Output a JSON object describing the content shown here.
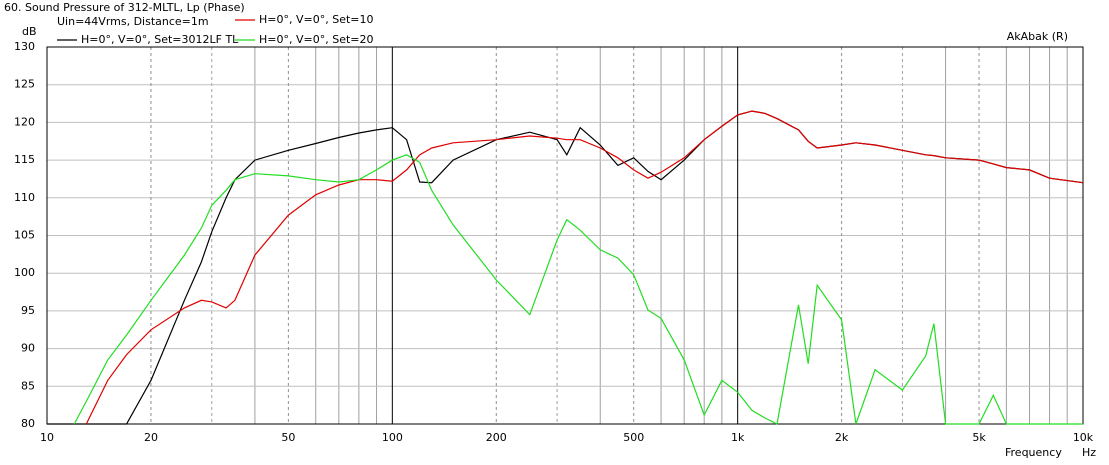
{
  "chart_data": {
    "type": "line",
    "title": "60. Sound Pressure of 312-MLTL, Lp (Phase)",
    "subtitle": "Uin=44Vrms, Distance=1m",
    "watermark": "AkAbak (R)",
    "ylabel": "dB",
    "xlabel": "Frequency",
    "xunit": "Hz",
    "xscale": "log",
    "grid": true,
    "xlim": [
      10,
      10000
    ],
    "ylim": [
      80,
      130
    ],
    "xticks": [
      10,
      20,
      50,
      100,
      200,
      500,
      {
        "value": 1000,
        "label": "1k"
      },
      {
        "value": 2000,
        "label": "2k"
      },
      {
        "value": 5000,
        "label": "5k"
      },
      {
        "value": 10000,
        "label": "10k"
      }
    ],
    "yticks": [
      80,
      85,
      90,
      95,
      100,
      105,
      110,
      115,
      120,
      125,
      130
    ],
    "x": [
      10,
      12,
      13,
      15,
      17,
      20,
      25,
      28,
      30,
      33,
      35,
      40,
      50,
      60,
      70,
      80,
      90,
      100,
      110,
      120,
      130,
      150,
      200,
      250,
      300,
      320,
      350,
      400,
      450,
      500,
      550,
      600,
      700,
      800,
      900,
      1000,
      1100,
      1200,
      1300,
      1500,
      1600,
      1700,
      2000,
      2200,
      2500,
      3000,
      3500,
      3700,
      4000,
      5000,
      5500,
      6000,
      7000,
      8000,
      10000
    ],
    "series": [
      {
        "name": "H=0°, V=0°, Set=3012LF TL",
        "color": "#000000",
        "values": [
          80,
          80,
          80,
          80,
          80,
          85.8,
          96.4,
          101.5,
          105.5,
          110,
          112.4,
          115,
          116.3,
          117.2,
          118,
          118.6,
          119,
          119.3,
          117.7,
          112.1,
          112,
          115,
          117.7,
          118.7,
          117.7,
          115.7,
          119.3,
          117,
          114.3,
          115.3,
          113.5,
          112.4,
          115,
          117.7,
          119.5,
          121,
          121.5,
          121.2,
          120.5,
          119,
          117.5,
          116.6,
          117,
          117.3,
          117,
          116.3,
          115.7,
          115.6,
          115.3,
          115,
          114.5,
          114,
          113.7,
          112.6,
          112
        ]
      },
      {
        "name": "H=0°, V=0°, Set=10",
        "color": "#e00000",
        "values": [
          null,
          null,
          80,
          85.8,
          89.2,
          92.5,
          95.4,
          96.4,
          96.2,
          95.4,
          96.4,
          102.4,
          107.7,
          110.4,
          111.7,
          112.4,
          112.4,
          112.2,
          113.7,
          115.7,
          116.6,
          117.3,
          117.7,
          118.2,
          117.9,
          117.7,
          117.7,
          116.6,
          115.3,
          113.7,
          112.6,
          113.4,
          115.3,
          117.7,
          119.5,
          121,
          121.5,
          121.2,
          120.5,
          119,
          117.5,
          116.6,
          117,
          117.3,
          117,
          116.3,
          115.7,
          115.6,
          115.3,
          115,
          114.5,
          114,
          113.7,
          112.6,
          112
        ]
      },
      {
        "name": "H=0°, V=0°, Set=20",
        "color": "#22dd22",
        "values": [
          null,
          80,
          83,
          88.5,
          91.8,
          96.4,
          102.4,
          106,
          109,
          111,
          112.4,
          113.2,
          112.9,
          112.4,
          112.1,
          112.4,
          113.7,
          115,
          115.7,
          114.7,
          111,
          106.4,
          99.1,
          94.5,
          104.4,
          107.1,
          105.7,
          103.1,
          102,
          99.8,
          95.1,
          94,
          88.5,
          81.2,
          85.8,
          84.2,
          81.8,
          80.8,
          80,
          95.8,
          88,
          98.4,
          93.8,
          80,
          87.2,
          84.5,
          89,
          93.3,
          80,
          80,
          83.8,
          80,
          80,
          80,
          80
        ]
      }
    ]
  }
}
